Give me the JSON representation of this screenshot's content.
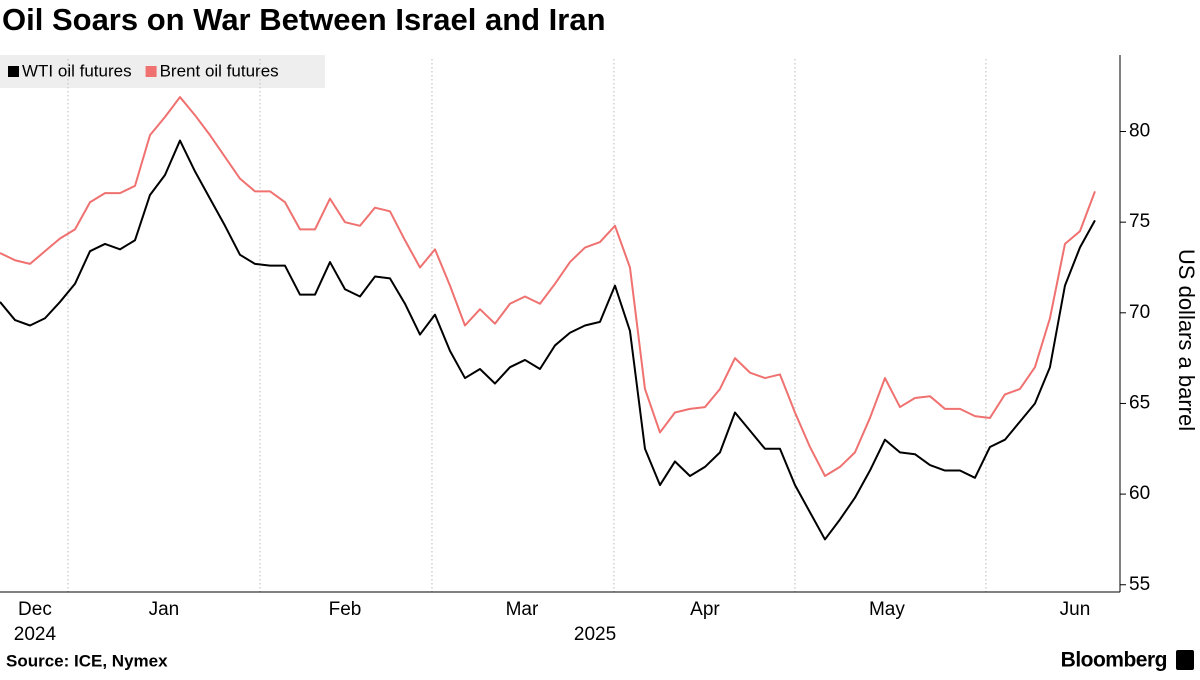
{
  "chart_data": {
    "type": "line",
    "title": "Oil Soars on War Between Israel and Iran",
    "source": "Source: ICE, Nymex",
    "brand": "Bloomberg",
    "y_label": "US dollars a barrel",
    "series": [
      {
        "name": "WTI oil futures",
        "color": "#000000",
        "values": [
          70.6,
          69.6,
          69.3,
          69.7,
          70.6,
          71.6,
          73.4,
          73.8,
          73.5,
          74.0,
          76.5,
          77.6,
          79.5,
          77.8,
          76.3,
          74.8,
          73.2,
          72.7,
          72.6,
          72.6,
          71.0,
          71.0,
          72.8,
          71.3,
          70.9,
          72.0,
          71.9,
          70.5,
          68.8,
          69.9,
          67.9,
          66.4,
          66.9,
          66.1,
          67.0,
          67.4,
          66.9,
          68.2,
          68.9,
          69.3,
          69.5,
          71.5,
          69.0,
          62.5,
          60.5,
          61.8,
          61.0,
          61.5,
          62.3,
          64.5,
          63.5,
          62.5,
          62.5,
          60.5,
          59.0,
          57.5,
          58.6,
          59.8,
          61.3,
          63.0,
          62.3,
          62.2,
          61.6,
          61.3,
          61.3,
          60.9,
          62.6,
          63.0,
          64.0,
          65.0,
          67.0,
          71.5,
          73.6,
          75.1
        ]
      },
      {
        "name": "Brent oil futures",
        "color": "#ef7170",
        "values": [
          73.3,
          72.9,
          72.7,
          73.4,
          74.1,
          74.6,
          76.1,
          76.6,
          76.6,
          77.0,
          79.8,
          80.8,
          81.9,
          80.9,
          79.8,
          78.6,
          77.4,
          76.7,
          76.7,
          76.1,
          74.6,
          74.6,
          76.3,
          75.0,
          74.8,
          75.8,
          75.6,
          74.0,
          72.5,
          73.5,
          71.5,
          69.3,
          70.2,
          69.4,
          70.5,
          70.9,
          70.5,
          71.6,
          72.8,
          73.6,
          73.9,
          74.8,
          72.5,
          65.8,
          63.4,
          64.5,
          64.7,
          64.8,
          65.8,
          67.5,
          66.7,
          66.4,
          66.6,
          64.5,
          62.6,
          61.0,
          61.5,
          62.3,
          64.2,
          66.4,
          64.8,
          65.3,
          65.4,
          64.7,
          64.7,
          64.3,
          64.2,
          65.5,
          65.8,
          67.0,
          69.7,
          73.8,
          74.5,
          76.7
        ]
      }
    ],
    "xlim": [
      0,
      74.67
    ],
    "ylim": [
      54.6,
      84
    ],
    "yticks": [
      55,
      60,
      65,
      70,
      75,
      80
    ],
    "xgrid": [
      4.53,
      17.33,
      28.8,
      40.93,
      53,
      65.73
    ],
    "xticks": [
      {
        "value": 2.33,
        "label": "Dec"
      },
      {
        "value": 10.93,
        "label": "Jan"
      },
      {
        "value": 23,
        "label": "Feb"
      },
      {
        "value": 34.8,
        "label": "Mar"
      },
      {
        "value": 47,
        "label": "Apr"
      },
      {
        "value": 59.13,
        "label": "May"
      },
      {
        "value": 71.67,
        "label": "Jun"
      }
    ],
    "year_ticks": [
      {
        "value": 2.33,
        "label": "2024"
      },
      {
        "value": 39.67,
        "label": "2025"
      }
    ],
    "legend": "top-left"
  }
}
